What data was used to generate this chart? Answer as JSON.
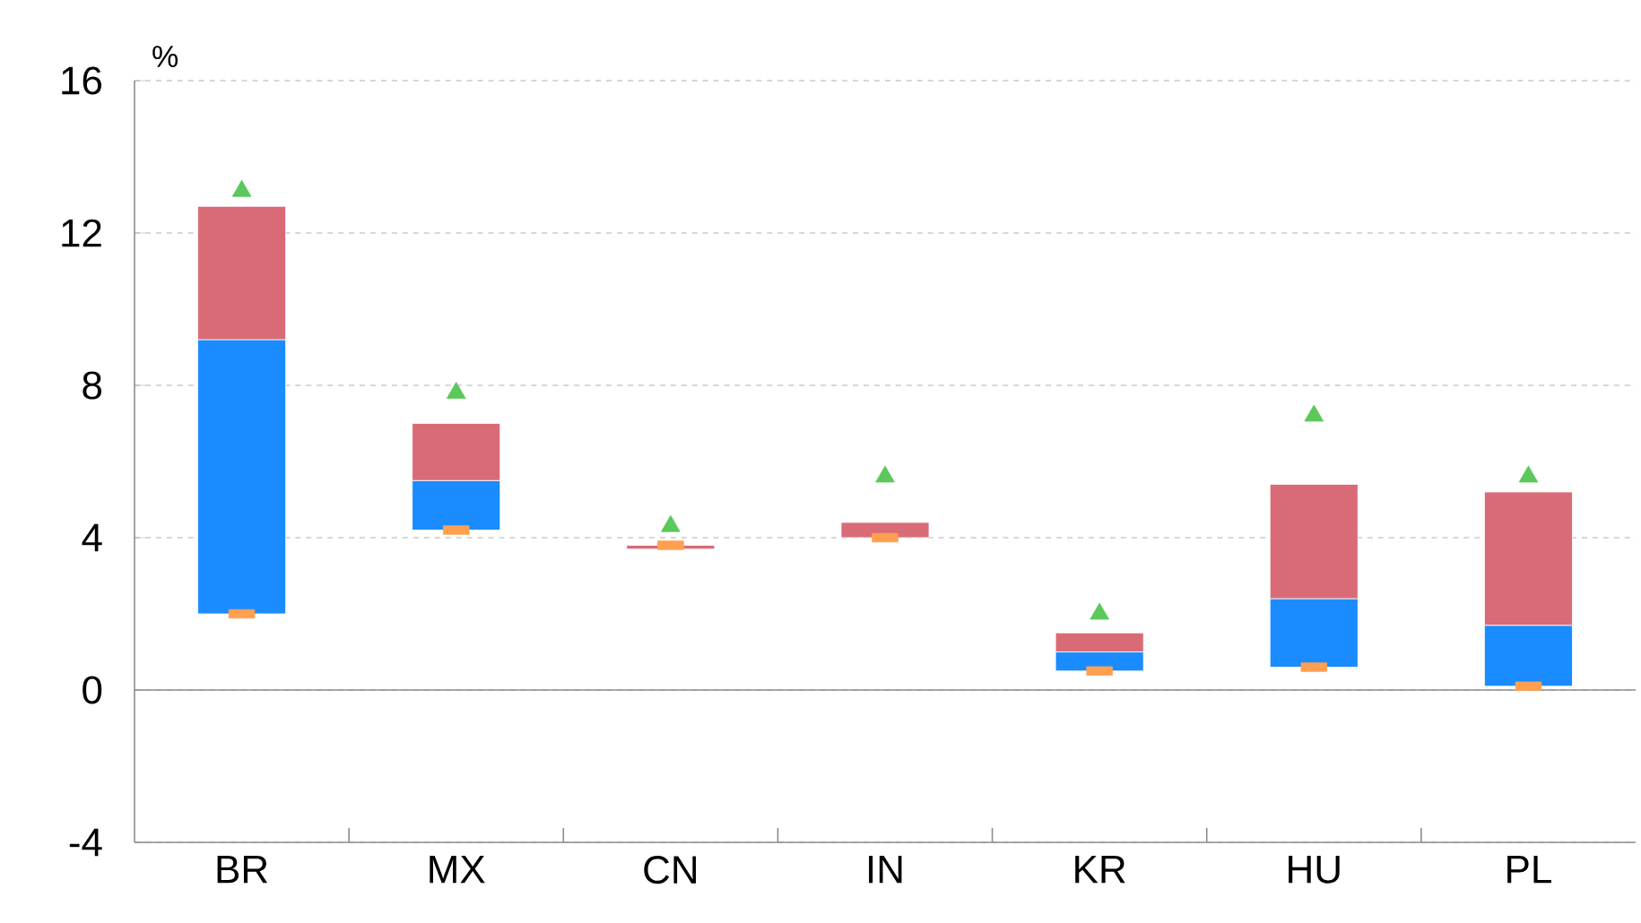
{
  "chart_data": {
    "type": "bar",
    "ylabel": "%",
    "categories": [
      "BR",
      "MX",
      "CN",
      "IN",
      "KR",
      "HU",
      "PL"
    ],
    "ylim": [
      -4,
      16
    ],
    "yticks": [
      -4,
      0,
      4,
      8,
      12,
      16
    ],
    "grid": "y",
    "ref_lines": [
      {
        "axis": "y",
        "value": 0,
        "color": "#8c8c8c",
        "line_style": "solid"
      }
    ],
    "series": [
      {
        "color": "#1a8cff",
        "base": [
          2.0,
          4.2,
          null,
          null,
          0.5,
          0.6,
          0.1
        ],
        "values": [
          7.2,
          1.3,
          null,
          null,
          0.5,
          1.8,
          1.6
        ]
      },
      {
        "color": "#d96b77",
        "base": [
          9.2,
          5.5,
          3.7,
          4.0,
          1.0,
          2.4,
          1.7
        ],
        "values": [
          3.5,
          1.5,
          0.1,
          0.4,
          0.5,
          3.0,
          3.5
        ]
      },
      {
        "type": "scatter",
        "marker": "triangle",
        "color": "#5ac85a",
        "values": [
          13.1,
          7.8,
          4.3,
          5.6,
          2.0,
          7.2,
          5.6
        ]
      },
      {
        "type": "scatter",
        "marker": "square",
        "color": "#ffa050",
        "values": [
          2.0,
          4.2,
          3.8,
          4.0,
          0.5,
          0.6,
          0.1
        ]
      }
    ]
  }
}
